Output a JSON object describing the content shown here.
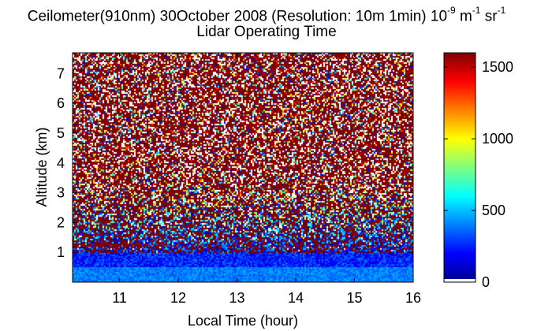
{
  "title": {
    "line1_main": "Ceilometer(910nm) 30October 2008 (Resolution: 10m 1min) 10",
    "line1_exp1": "-9",
    "line1_unit1": " m",
    "line1_exp2": "-1",
    "line1_unit2": " sr",
    "line1_exp3": "-1",
    "line2": "Lidar Operating Time"
  },
  "chart_data": {
    "type": "heatmap",
    "xlabel": "Local Time (hour)",
    "ylabel": "Altitude (km)",
    "xlim": [
      10.2,
      16.0
    ],
    "ylim": [
      0.0,
      7.7
    ],
    "xticks": [
      11,
      12,
      13,
      14,
      15,
      16
    ],
    "yticks": [
      1,
      2,
      3,
      4,
      5,
      6,
      7
    ],
    "colorbar": {
      "ticks": [
        0,
        500,
        1000,
        1500
      ],
      "range": [
        0,
        1600
      ],
      "colormap": "jet"
    },
    "description_values": {
      "surface_layer_km": [
        0.0,
        0.5
      ],
      "surface_layer_value_approx": 400,
      "lower_layer_value_approx": 250,
      "noise_region_value_approx": 1600,
      "cloud_feature": {
        "x": [
          10.2,
          11.8
        ],
        "altitude_km": 1.25,
        "value_approx": 1600
      }
    },
    "colors": {
      "dark_red": "#800000",
      "red": "#ff0000",
      "yellow": "#ffff00",
      "cyan": "#00ffff",
      "blue": "#0000ff",
      "dark_blue": "#00008f"
    }
  }
}
